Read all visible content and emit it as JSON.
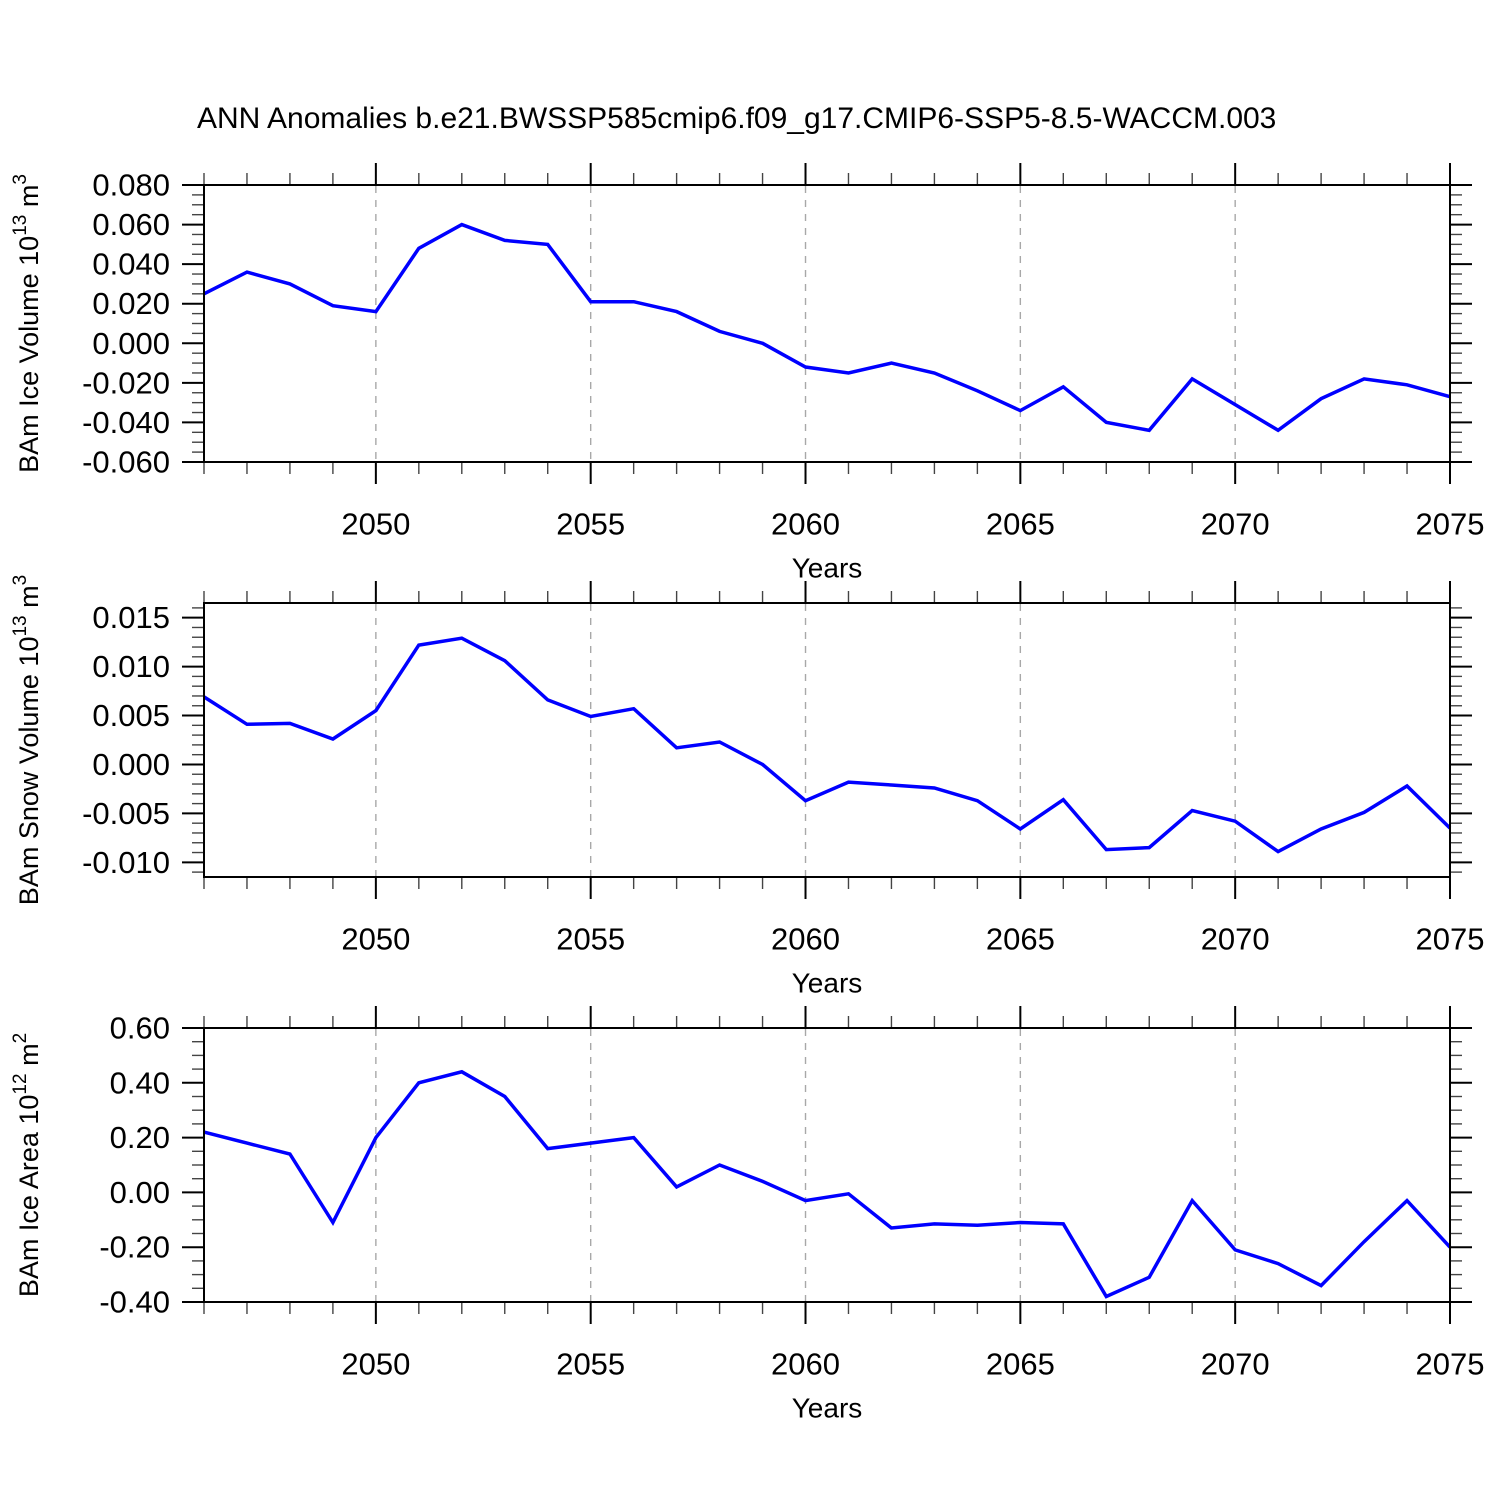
{
  "title": "ANN Anomalies b.e21.BWSSP585cmip6.f09_g17.CMIP6-SSP5-8.5-WACCM.003",
  "colors": {
    "line": "#0000ff",
    "axis": "#000000",
    "minor_tick": "#444444",
    "grid": "#a8a8a8",
    "background": "#ffffff",
    "text": "#000000"
  },
  "x_axis": {
    "label": "Years",
    "start": 2046,
    "end": 2075,
    "major_ticks": [
      2050,
      2055,
      2060,
      2065,
      2070,
      2075
    ],
    "major_tick_labels": [
      "2050",
      "2055",
      "2060",
      "2065",
      "2070",
      "2075"
    ],
    "minor_tick_step": 1,
    "grid_lines": [
      2050,
      2055,
      2060,
      2065,
      2070
    ]
  },
  "chart_data": [
    {
      "type": "line",
      "id": "ice-volume",
      "ylabel": "BAm Ice Volume 10^13 m^3",
      "ylabel_parts": [
        {
          "text": "BAm Ice Volume 10"
        },
        {
          "text": "13",
          "sup": true
        },
        {
          "text": " m"
        },
        {
          "text": "3",
          "sup": true
        }
      ],
      "xlabel": "Years",
      "x": [
        2046,
        2047,
        2048,
        2049,
        2050,
        2051,
        2052,
        2053,
        2054,
        2055,
        2056,
        2057,
        2058,
        2059,
        2060,
        2061,
        2062,
        2063,
        2064,
        2065,
        2066,
        2067,
        2068,
        2069,
        2070,
        2071,
        2072,
        2073,
        2074,
        2075
      ],
      "values": [
        0.025,
        0.036,
        0.03,
        0.019,
        0.016,
        0.048,
        0.06,
        0.052,
        0.05,
        0.021,
        0.021,
        0.016,
        0.006,
        0.0,
        -0.012,
        -0.015,
        -0.01,
        -0.015,
        -0.024,
        -0.034,
        -0.022,
        -0.04,
        -0.044,
        -0.018,
        -0.031,
        -0.044,
        -0.028,
        -0.018,
        -0.021,
        -0.027
      ],
      "ylim": [
        -0.06,
        0.08
      ],
      "y_major_ticks": [
        0.08,
        0.06,
        0.04,
        0.02,
        0.0,
        -0.02,
        -0.04,
        -0.06
      ],
      "y_major_tick_labels": [
        "0.080",
        "0.060",
        "0.040",
        "0.020",
        "0.000",
        "-0.020",
        "-0.040",
        "-0.060"
      ],
      "y_minor_step": 0.005,
      "grid": "x-dashed",
      "legend": "none"
    },
    {
      "type": "line",
      "id": "snow-volume",
      "ylabel": "BAm Snow Volume 10^13 m^3",
      "ylabel_parts": [
        {
          "text": "BAm Snow Volume 10"
        },
        {
          "text": "13",
          "sup": true
        },
        {
          "text": " m"
        },
        {
          "text": "3",
          "sup": true
        }
      ],
      "xlabel": "Years",
      "x": [
        2046,
        2047,
        2048,
        2049,
        2050,
        2051,
        2052,
        2053,
        2054,
        2055,
        2056,
        2057,
        2058,
        2059,
        2060,
        2061,
        2062,
        2063,
        2064,
        2065,
        2066,
        2067,
        2068,
        2069,
        2070,
        2071,
        2072,
        2073,
        2074,
        2075
      ],
      "values": [
        0.0069,
        0.0041,
        0.0042,
        0.0026,
        0.0055,
        0.0122,
        0.0129,
        0.0106,
        0.0066,
        0.0049,
        0.0057,
        0.0017,
        0.0023,
        0.0,
        -0.0037,
        -0.0018,
        -0.0021,
        -0.0024,
        -0.0037,
        -0.0066,
        -0.0036,
        -0.0087,
        -0.0085,
        -0.0047,
        -0.0058,
        -0.0089,
        -0.0066,
        -0.0049,
        -0.0022,
        -0.0065
      ],
      "ylim": [
        -0.0115,
        0.0165
      ],
      "y_major_ticks": [
        0.015,
        0.01,
        0.005,
        0.0,
        -0.005,
        -0.01
      ],
      "y_major_tick_labels": [
        "0.015",
        "0.010",
        "0.005",
        "0.000",
        "-0.005",
        "-0.010"
      ],
      "y_minor_step": 0.001,
      "grid": "x-dashed",
      "legend": "none"
    },
    {
      "type": "line",
      "id": "ice-area",
      "ylabel": "BAm Ice Area 10^12 m^2",
      "ylabel_parts": [
        {
          "text": "BAm Ice Area 10"
        },
        {
          "text": "12",
          "sup": true
        },
        {
          "text": " m"
        },
        {
          "text": "2",
          "sup": true
        }
      ],
      "xlabel": "Years",
      "x": [
        2046,
        2047,
        2048,
        2049,
        2050,
        2051,
        2052,
        2053,
        2054,
        2055,
        2056,
        2057,
        2058,
        2059,
        2060,
        2061,
        2062,
        2063,
        2064,
        2065,
        2066,
        2067,
        2068,
        2069,
        2070,
        2071,
        2072,
        2073,
        2074,
        2075
      ],
      "values": [
        0.22,
        0.18,
        0.14,
        -0.11,
        0.2,
        0.4,
        0.44,
        0.35,
        0.16,
        0.18,
        0.2,
        0.02,
        0.1,
        0.04,
        -0.03,
        -0.005,
        -0.13,
        -0.115,
        -0.12,
        -0.11,
        -0.115,
        -0.38,
        -0.31,
        -0.03,
        -0.21,
        -0.26,
        -0.34,
        -0.18,
        -0.03,
        -0.2
      ],
      "ylim": [
        -0.4,
        0.6
      ],
      "y_major_ticks": [
        0.6,
        0.4,
        0.2,
        0.0,
        -0.2,
        -0.4
      ],
      "y_major_tick_labels": [
        "0.60",
        "0.40",
        "0.20",
        "0.00",
        "-0.20",
        "-0.40"
      ],
      "y_minor_step": 0.05,
      "grid": "x-dashed",
      "legend": "none"
    }
  ]
}
